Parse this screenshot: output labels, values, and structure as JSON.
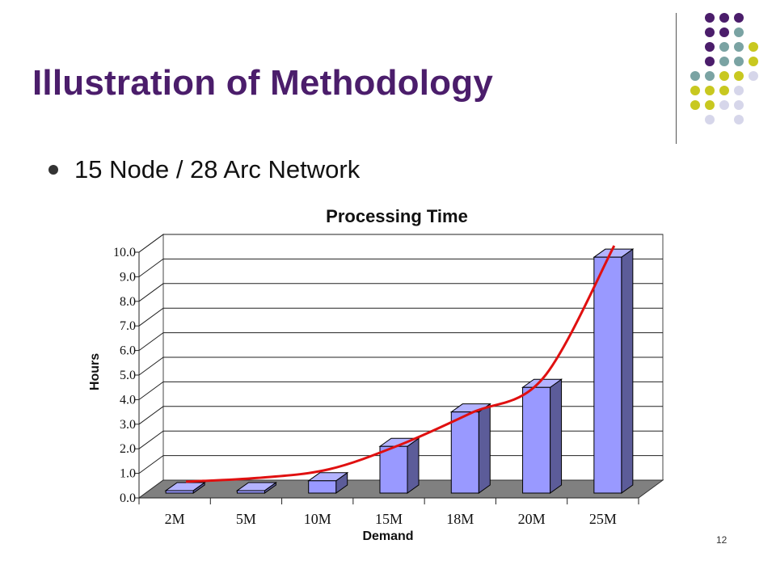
{
  "slide": {
    "title": "Illustration of Methodology",
    "bullet": "15 Node / 28 Arc Network",
    "page_number": "12"
  },
  "colors": {
    "title": "#4b1d6b",
    "dot_purple": "#4b1d6b",
    "dot_teal": "#7aa3a3",
    "dot_yellow": "#c8c820",
    "dot_lavender": "#d6d6ea",
    "bar_front": "#9999ff",
    "bar_side": "#5c5c99",
    "bar_top": "#b3b3ff",
    "floor": "#808080",
    "trend": "#e01010"
  },
  "chart_data": {
    "type": "bar",
    "title": "Processing Time",
    "xlabel": "Demand",
    "ylabel": "Hours",
    "categories": [
      "2M",
      "5M",
      "10M",
      "15M",
      "18M",
      "20M",
      "25M"
    ],
    "values": [
      0.1,
      0.1,
      0.5,
      1.9,
      3.3,
      4.3,
      9.6
    ],
    "ylim": [
      0,
      10
    ],
    "yticks": [
      "0.0",
      "1.0",
      "2.0",
      "3.0",
      "4.0",
      "5.0",
      "6.0",
      "7.0",
      "8.0",
      "9.0",
      "10.0"
    ],
    "trendline": {
      "type": "curve",
      "values": [
        0.4,
        0.55,
        0.9,
        1.9,
        3.2,
        4.6,
        10.0
      ]
    },
    "grid": true,
    "style": "3d-column"
  }
}
